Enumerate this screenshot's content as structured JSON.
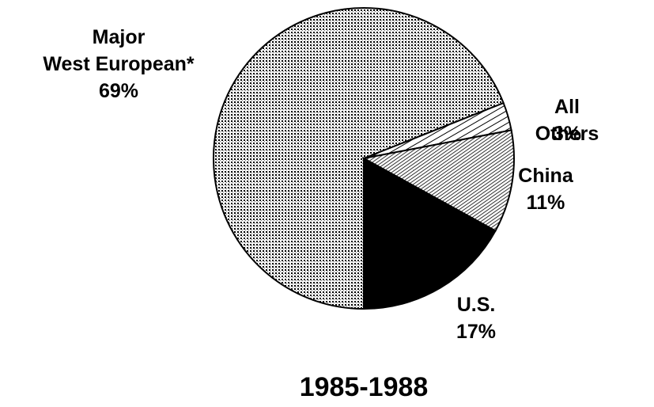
{
  "chart_data": {
    "type": "pie",
    "title": "1985-1988",
    "categories": [
      "Major\nWest European*",
      "All Others",
      "China",
      "U.S."
    ],
    "values": [
      69,
      3,
      11,
      17
    ],
    "value_labels": [
      "69%",
      "3%",
      "11%",
      "17%"
    ]
  }
}
